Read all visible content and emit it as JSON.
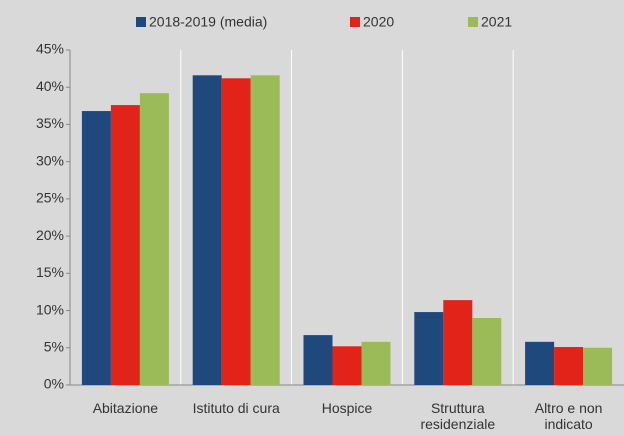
{
  "chart_data": {
    "type": "bar",
    "categories": [
      "Abitazione",
      "Istituto di cura",
      "Hospice",
      "Struttura residenziale",
      "Altro e non indicato"
    ],
    "series": [
      {
        "name": "2018-2019 (media)",
        "color": "#1f497d",
        "values": [
          36.8,
          41.6,
          6.7,
          9.8,
          5.8
        ]
      },
      {
        "name": "2020",
        "color": "#e2231a",
        "values": [
          37.6,
          41.2,
          5.2,
          11.4,
          5.1
        ]
      },
      {
        "name": "2021",
        "color": "#9bbb59",
        "values": [
          39.2,
          41.6,
          5.8,
          9.0,
          5.0
        ]
      }
    ],
    "ylim": [
      0,
      45
    ],
    "yticks": [
      {
        "value": 0,
        "label": "0%"
      },
      {
        "value": 5,
        "label": "5%"
      },
      {
        "value": 10,
        "label": "10%"
      },
      {
        "value": 15,
        "label": "15%"
      },
      {
        "value": 20,
        "label": "20%"
      },
      {
        "value": 25,
        "label": "25%"
      },
      {
        "value": 30,
        "label": "30%"
      },
      {
        "value": 35,
        "label": "35%"
      },
      {
        "value": 40,
        "label": "40%"
      },
      {
        "value": 45,
        "label": "45%"
      }
    ],
    "legend": "top"
  }
}
